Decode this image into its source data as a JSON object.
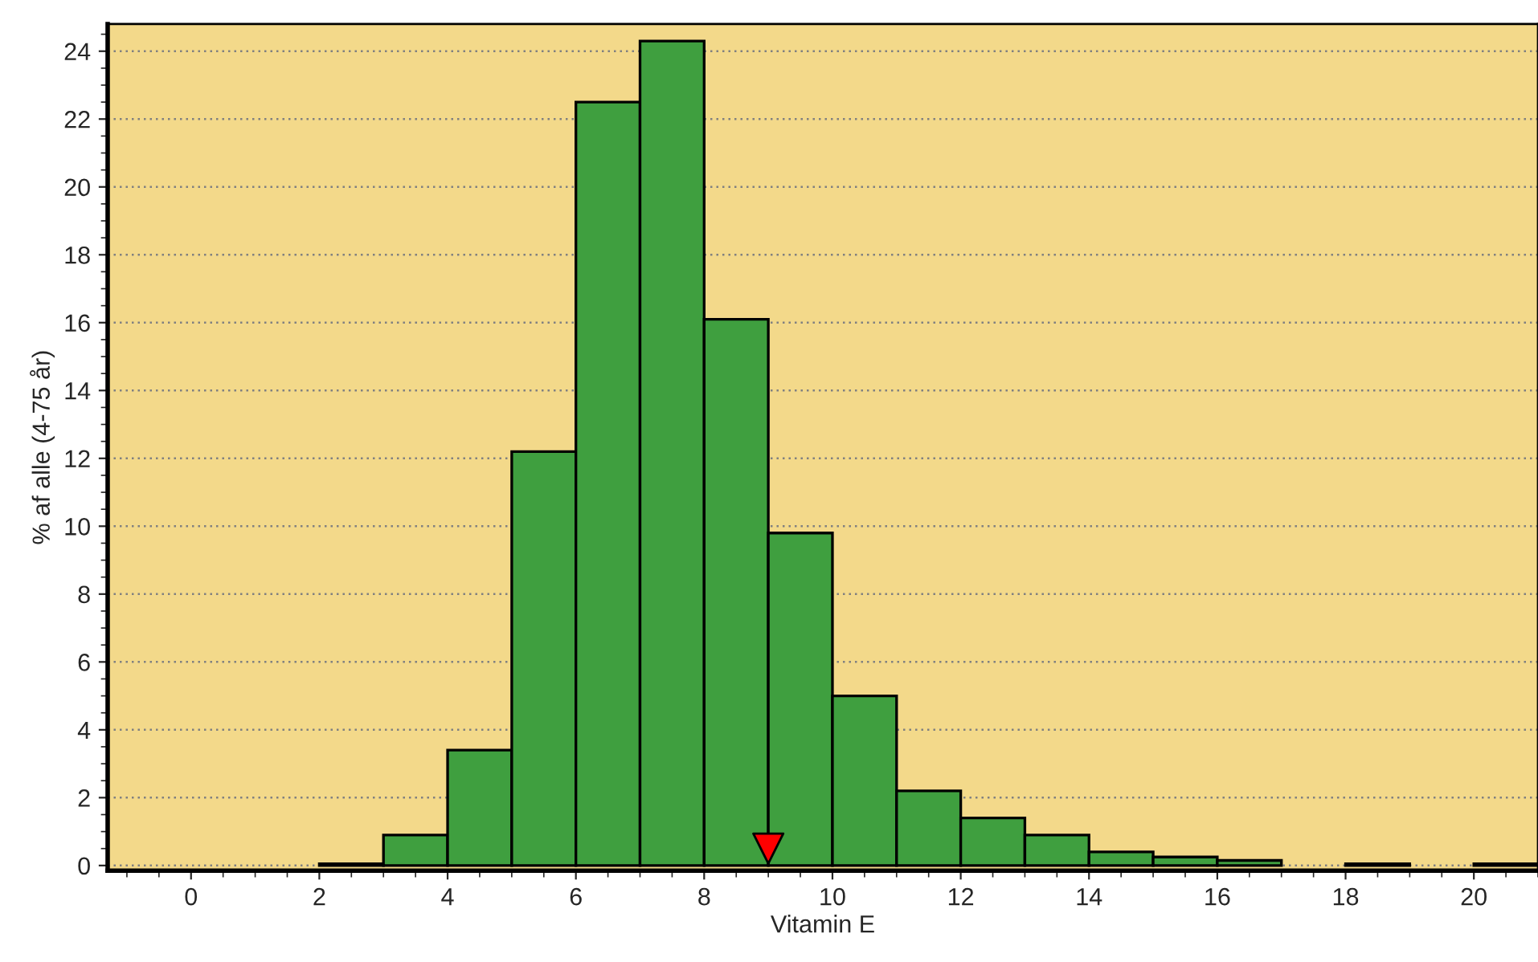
{
  "chart_data": {
    "type": "histogram",
    "xlabel": "Vitamin E",
    "ylabel": "% af alle (4-75 år)",
    "bins": [
      -1,
      0,
      1,
      2,
      3,
      4,
      5,
      6,
      7,
      8,
      9,
      10,
      11,
      12,
      13,
      14,
      15,
      16,
      17,
      18,
      19,
      20,
      21
    ],
    "values": [
      0,
      0,
      0,
      0.05,
      0.9,
      3.4,
      12.2,
      22.5,
      24.3,
      16.1,
      9.8,
      5.0,
      2.2,
      1.4,
      0.9,
      0.4,
      0.25,
      0.15,
      0,
      0.05,
      0,
      0.05
    ],
    "color": "#3f9f3f",
    "series": [
      {
        "type": "scatter",
        "x": [
          9
        ],
        "values": [
          0.5
        ],
        "color": "#ff0000",
        "marker": "triangle"
      }
    ],
    "xlim": [
      -1.3,
      21
    ],
    "ylim": [
      -0.15,
      24.8
    ],
    "xticks": [
      0,
      2,
      4,
      6,
      8,
      10,
      12,
      14,
      16,
      18,
      20
    ],
    "yticks": [
      0,
      2,
      4,
      6,
      8,
      10,
      12,
      14,
      16,
      18,
      20,
      22,
      24
    ],
    "grid": "y"
  }
}
